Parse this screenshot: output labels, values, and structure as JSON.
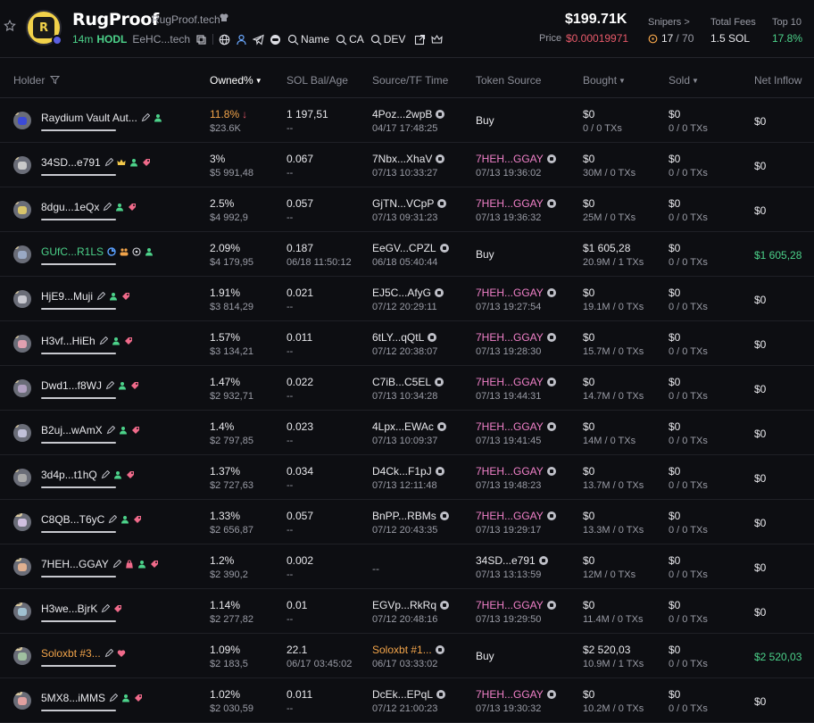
{
  "token": {
    "name": "RugProof",
    "site": "RugProof.tech",
    "age": "14m",
    "hodl": "HODL",
    "ca_short": "EeHC...tech",
    "tools": [
      "Name",
      "CA",
      "DEV"
    ],
    "market_cap": "$199.71K",
    "price_label": "Price",
    "price": "$0.00019971",
    "snipers_label": "Snipers >",
    "snipers_count": "17",
    "snipers_total": "/ 70",
    "fees_label": "Total Fees",
    "fees_value": "1.5 SOL",
    "top10_label": "Top 10",
    "top10_value": "17.8%"
  },
  "colors": {
    "green": "#4cd28a",
    "red": "#e85a6a",
    "pink": "#f080c8",
    "orange": "#f2a44a",
    "background": "#0d0e12"
  },
  "columns": [
    "Holder",
    "Owned%",
    "SOL Bal/Age",
    "Source/TF Time",
    "Token Source",
    "Bought",
    "Sold",
    "Net Inflow"
  ],
  "rows": [
    {
      "rank": "1",
      "name": "Raydium Vault Aut...",
      "owned": "11.8%",
      "value": "$23.6K",
      "sol": "1 197,51",
      "age": "--",
      "src": "4Poz...2wpB",
      "src_time": "04/17 17:48:25",
      "token_src": "Buy",
      "token_time": "",
      "bought": "$0",
      "bought_sub": "0 / 0 TXs",
      "sold": "$0",
      "sold_sub": "0 / 0 TXs",
      "net": "$0"
    },
    {
      "rank": "2",
      "name": "34SD...e791",
      "owned": "3%",
      "value": "$5 991,48",
      "sol": "0.067",
      "age": "--",
      "src": "7Nbx...XhaV",
      "src_time": "07/13 10:33:27",
      "token_src": "7HEH...GGAY",
      "token_time": "07/13 19:36:02",
      "bought": "$0",
      "bought_sub": "30M / 0 TXs",
      "sold": "$0",
      "sold_sub": "0 / 0 TXs",
      "net": "$0"
    },
    {
      "rank": "3",
      "name": "8dgu...1eQx",
      "owned": "2.5%",
      "value": "$4 992,9",
      "sol": "0.057",
      "age": "--",
      "src": "GjTN...VCpP",
      "src_time": "07/13 09:31:23",
      "token_src": "7HEH...GGAY",
      "token_time": "07/13 19:36:32",
      "bought": "$0",
      "bought_sub": "25M / 0 TXs",
      "sold": "$0",
      "sold_sub": "0 / 0 TXs",
      "net": "$0"
    },
    {
      "rank": "4",
      "name": "GUfC...R1LS",
      "owned": "2.09%",
      "value": "$4 179,95",
      "sol": "0.187",
      "age": "06/18 11:50:12",
      "src": "EeGV...CPZL",
      "src_time": "06/18 05:40:44",
      "token_src": "Buy",
      "token_time": "",
      "bought": "$1 605,28",
      "bought_sub": "20.9M / 1 TXs",
      "sold": "$0",
      "sold_sub": "0 / 0 TXs",
      "net": "$1 605,28"
    },
    {
      "rank": "5",
      "name": "HjE9...Muji",
      "owned": "1.91%",
      "value": "$3 814,29",
      "sol": "0.021",
      "age": "--",
      "src": "EJ5C...AfyG",
      "src_time": "07/12 20:29:11",
      "token_src": "7HEH...GGAY",
      "token_time": "07/13 19:27:54",
      "bought": "$0",
      "bought_sub": "19.1M / 0 TXs",
      "sold": "$0",
      "sold_sub": "0 / 0 TXs",
      "net": "$0"
    },
    {
      "rank": "6",
      "name": "H3vf...HiEh",
      "owned": "1.57%",
      "value": "$3 134,21",
      "sol": "0.011",
      "age": "--",
      "src": "6tLY...qQtL",
      "src_time": "07/12 20:38:07",
      "token_src": "7HEH...GGAY",
      "token_time": "07/13 19:28:30",
      "bought": "$0",
      "bought_sub": "15.7M / 0 TXs",
      "sold": "$0",
      "sold_sub": "0 / 0 TXs",
      "net": "$0"
    },
    {
      "rank": "7",
      "name": "Dwd1...f8WJ",
      "owned": "1.47%",
      "value": "$2 932,71",
      "sol": "0.022",
      "age": "--",
      "src": "C7iB...C5EL",
      "src_time": "07/13 10:34:28",
      "token_src": "7HEH...GGAY",
      "token_time": "07/13 19:44:31",
      "bought": "$0",
      "bought_sub": "14.7M / 0 TXs",
      "sold": "$0",
      "sold_sub": "0 / 0 TXs",
      "net": "$0"
    },
    {
      "rank": "8",
      "name": "B2uj...wAmX",
      "owned": "1.4%",
      "value": "$2 797,85",
      "sol": "0.023",
      "age": "--",
      "src": "4Lpx...EWAc",
      "src_time": "07/13 10:09:37",
      "token_src": "7HEH...GGAY",
      "token_time": "07/13 19:41:45",
      "bought": "$0",
      "bought_sub": "14M / 0 TXs",
      "sold": "$0",
      "sold_sub": "0 / 0 TXs",
      "net": "$0"
    },
    {
      "rank": "9",
      "name": "3d4p...t1hQ",
      "owned": "1.37%",
      "value": "$2 727,63",
      "sol": "0.034",
      "age": "--",
      "src": "D4Ck...F1pJ",
      "src_time": "07/13 12:11:48",
      "token_src": "7HEH...GGAY",
      "token_time": "07/13 19:48:23",
      "bought": "$0",
      "bought_sub": "13.7M / 0 TXs",
      "sold": "$0",
      "sold_sub": "0 / 0 TXs",
      "net": "$0"
    },
    {
      "rank": "10",
      "name": "C8QB...T6yC",
      "owned": "1.33%",
      "value": "$2 656,87",
      "sol": "0.057",
      "age": "--",
      "src": "BnPP...RBMs",
      "src_time": "07/12 20:43:35",
      "token_src": "7HEH...GGAY",
      "token_time": "07/13 19:29:17",
      "bought": "$0",
      "bought_sub": "13.3M / 0 TXs",
      "sold": "$0",
      "sold_sub": "0 / 0 TXs",
      "net": "$0"
    },
    {
      "rank": "11",
      "name": "7HEH...GGAY",
      "owned": "1.2%",
      "value": "$2 390,2",
      "sol": "0.002",
      "age": "--",
      "src": "--",
      "src_time": "",
      "token_src": "34SD...e791",
      "token_time": "07/13 13:13:59",
      "bought": "$0",
      "bought_sub": "12M / 0 TXs",
      "sold": "$0",
      "sold_sub": "0 / 0 TXs",
      "net": "$0"
    },
    {
      "rank": "12",
      "name": "H3we...BjrK",
      "owned": "1.14%",
      "value": "$2 277,82",
      "sol": "0.01",
      "age": "--",
      "src": "EGVp...RkRq",
      "src_time": "07/12 20:48:16",
      "token_src": "7HEH...GGAY",
      "token_time": "07/13 19:29:50",
      "bought": "$0",
      "bought_sub": "11.4M / 0 TXs",
      "sold": "$0",
      "sold_sub": "0 / 0 TXs",
      "net": "$0"
    },
    {
      "rank": "13",
      "name": "Soloxbt #3...",
      "owned": "1.09%",
      "value": "$2 183,5",
      "sol": "22.1",
      "age": "06/17 03:45:02",
      "src": "Soloxbt #1...",
      "src_time": "06/17 03:33:02",
      "token_src": "Buy",
      "token_time": "",
      "bought": "$2 520,03",
      "bought_sub": "10.9M / 1 TXs",
      "sold": "$0",
      "sold_sub": "0 / 0 TXs",
      "net": "$2 520,03"
    },
    {
      "rank": "14",
      "name": "5MX8...iMMS",
      "owned": "1.02%",
      "value": "$2 030,59",
      "sol": "0.011",
      "age": "--",
      "src": "DcEk...EPqL",
      "src_time": "07/12 21:00:23",
      "token_src": "7HEH...GGAY",
      "token_time": "07/13 19:30:32",
      "bought": "$0",
      "bought_sub": "10.2M / 0 TXs",
      "sold": "$0",
      "sold_sub": "0 / 0 TXs",
      "net": "$0"
    }
  ]
}
